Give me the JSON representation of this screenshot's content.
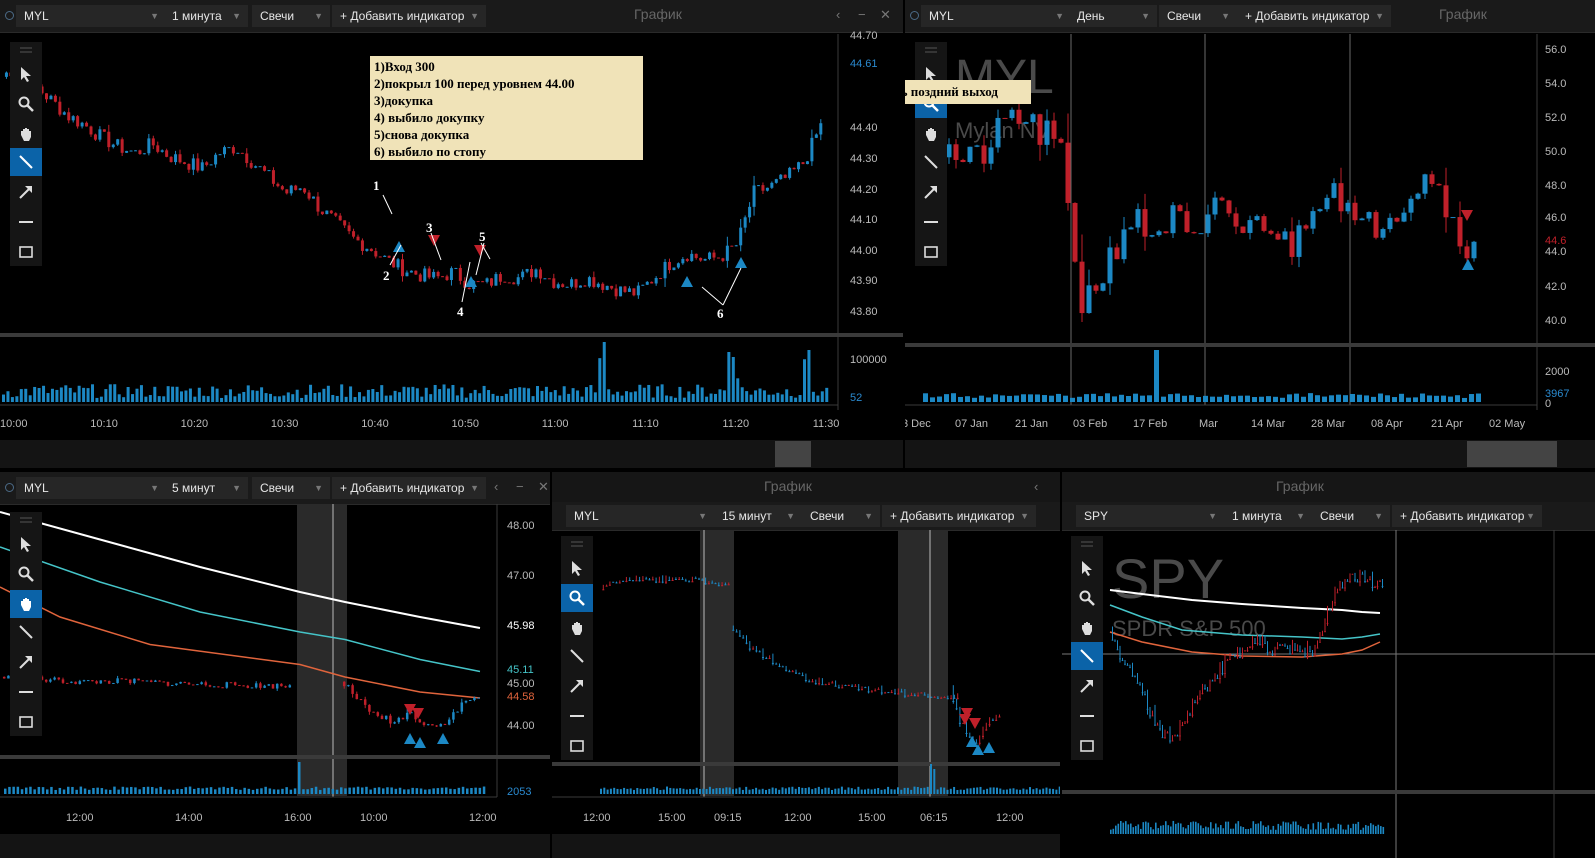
{
  "colors": {
    "bg": "#000000",
    "up": "#1c88c4",
    "down": "#c0202a",
    "grid": "#3a3a3a",
    "white_line": "#ffffff",
    "teal_line": "#45c4c8",
    "orange_line": "#e0643c"
  },
  "panels": {
    "p1": {
      "symbol": "MYL",
      "interval": "1 минута",
      "type": "Свечи",
      "add_indicator": "+ Добавить индикатор",
      "title": "График",
      "price_labels": [
        "44.70",
        "44.61",
        "44.40",
        "44.30",
        "44.20",
        "44.10",
        "44.00",
        "43.90",
        "43.80"
      ],
      "current_price": "44.61",
      "volume_labels": [
        "100000",
        "52"
      ],
      "time_labels": [
        "10:00",
        "10:10",
        "10:20",
        "10:30",
        "10:40",
        "10:50",
        "11:00",
        "11:10",
        "11:20",
        "11:30"
      ]
    },
    "p2": {
      "symbol": "MYL",
      "interval": "День",
      "type": "Свечи",
      "add_indicator": "+ Добавить индикатор",
      "title": "График",
      "watermark": "MYL",
      "watermark_sub": "Mylan NV",
      "price_labels": [
        "56.0",
        "54.0",
        "52.0",
        "50.0",
        "48.0",
        "46.0",
        "44.6",
        "44.0",
        "42.0",
        "40.0"
      ],
      "volume_labels": [
        "2000",
        "3967",
        "0"
      ],
      "time_labels": [
        "3 Dec",
        "07 Jan",
        "21 Jan",
        "03 Feb",
        "17 Feb",
        "Mar",
        "14 Mar",
        "28 Mar",
        "08 Apr",
        "21 Apr",
        "02 May"
      ]
    },
    "p3": {
      "symbol": "MYL",
      "interval": "5 минут",
      "type": "Свечи",
      "add_indicator": "+ Добавить индикатор",
      "price_labels": [
        "48.00",
        "47.00",
        "45.98",
        "45.11",
        "45.00",
        "44.58",
        "44.00"
      ],
      "volume_labels": [
        "2053"
      ],
      "time_labels": [
        "12:00",
        "14:00",
        "16:00",
        "10:00",
        "12:00"
      ]
    },
    "p4": {
      "symbol": "MYL",
      "interval": "15 минут",
      "type": "Свечи",
      "add_indicator": "+ Добавить индикатор",
      "title": "График",
      "time_labels": [
        "12:00",
        "15:00",
        "09:15",
        "12:00",
        "15:00",
        "06:15",
        "12:00"
      ]
    },
    "p5": {
      "symbol": "SPY",
      "interval": "1 минута",
      "type": "Свечи",
      "add_indicator": "+ Добавить индикатор",
      "title": "График",
      "watermark": "SPY",
      "watermark_sub": "SPDR S&P 500"
    }
  },
  "annotations": {
    "note_lines": [
      "1)Вход 300",
      "2)покрыл 100 перед уровнем 44.00",
      "3)докупка",
      "4) выбило докупку",
      "5)снова докупка",
      "6) выбило по стопу"
    ],
    "error_note": "Ошибки : очень поздний выход",
    "markers": [
      "1",
      "2",
      "3",
      "4",
      "5",
      "6"
    ]
  },
  "chart_data": [
    {
      "type": "candlestick",
      "symbol": "MYL",
      "interval": "1 минута",
      "y_range": [
        43.75,
        44.72
      ],
      "x": [
        "10:00",
        "10:10",
        "10:20",
        "10:30",
        "10:40",
        "10:50",
        "11:00",
        "11:10",
        "11:20",
        "11:30"
      ],
      "close_path": [
        44.58,
        44.62,
        44.55,
        44.5,
        44.45,
        44.42,
        44.38,
        44.35,
        44.33,
        44.36,
        44.32,
        44.3,
        44.28,
        44.33,
        44.35,
        44.3,
        44.25,
        44.2,
        44.22,
        44.15,
        44.1,
        44.05,
        44.02,
        43.98,
        43.95,
        43.93,
        43.92,
        43.94,
        43.9,
        43.9,
        43.93,
        43.92,
        43.95,
        43.91,
        43.9,
        43.92,
        43.9,
        43.88,
        43.87,
        43.92,
        43.97,
        44.0,
        43.98,
        43.99,
        44.03,
        44.2,
        44.22,
        44.25,
        44.3,
        44.42
      ]
    },
    {
      "type": "candlestick",
      "symbol": "MYL",
      "interval": "День",
      "y_range": [
        39.5,
        56.5
      ],
      "x": [
        "07 Jan",
        "21 Jan",
        "03 Feb",
        "17 Feb",
        "Mar",
        "14 Mar",
        "28 Mar",
        "08 Apr",
        "21 Apr"
      ]
    },
    {
      "type": "candlestick",
      "symbol": "MYL",
      "interval": "5 минут",
      "y_range": [
        43.5,
        48.3
      ],
      "x": [
        "12:00",
        "14:00",
        "16:00",
        "10:00",
        "12:00"
      ],
      "indicator_levels": {
        "white": 45.98,
        "teal": 45.11,
        "orange": 44.58
      }
    },
    {
      "type": "candlestick",
      "symbol": "MYL",
      "interval": "15 минут",
      "x": [
        "12:00",
        "15:00",
        "09:15",
        "12:00",
        "15:00",
        "06:15",
        "12:00"
      ]
    },
    {
      "type": "candlestick",
      "symbol": "SPY",
      "interval": "1 минута"
    }
  ]
}
